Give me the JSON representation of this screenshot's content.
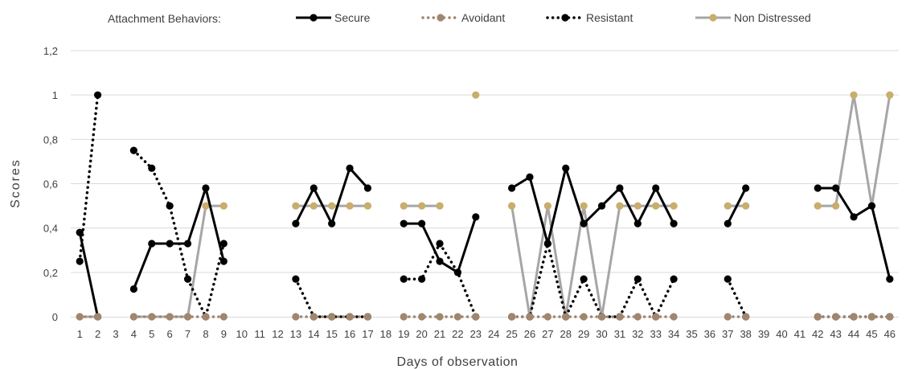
{
  "chart_data": {
    "type": "line",
    "title": "",
    "xlabel": "Days of observation",
    "ylabel": "Scores",
    "legend_title": "Attachment Behaviors:",
    "legend_position": "top",
    "ylim": [
      0,
      1.2
    ],
    "y_ticks": [
      "0",
      "0,2",
      "0,4",
      "0,6",
      "0,8",
      "1",
      "1,2"
    ],
    "grid": true,
    "categories": [
      "1",
      "2",
      "3",
      "4",
      "5",
      "6",
      "7",
      "8",
      "9",
      "10",
      "11",
      "12",
      "13",
      "14",
      "15",
      "16",
      "17",
      "18",
      "19",
      "20",
      "21",
      "22",
      "23",
      "24",
      "25",
      "26",
      "27",
      "28",
      "29",
      "30",
      "31",
      "32",
      "33",
      "34",
      "35",
      "36",
      "37",
      "38",
      "39",
      "40",
      "41",
      "42",
      "43",
      "44",
      "45",
      "46"
    ],
    "series": [
      {
        "name": "Secure",
        "color": "#000000",
        "style": "solid",
        "values": [
          0.38,
          0,
          null,
          0.125,
          0.33,
          0.33,
          0.33,
          0.58,
          0.25,
          null,
          null,
          null,
          0.42,
          0.58,
          0.42,
          0.67,
          0.58,
          null,
          0.42,
          0.42,
          0.25,
          0.2,
          0.45,
          null,
          0.58,
          0.63,
          0.33,
          0.67,
          0.42,
          0.5,
          0.58,
          0.42,
          0.58,
          0.42,
          null,
          null,
          0.42,
          0.58,
          null,
          null,
          null,
          0.58,
          0.58,
          0.45,
          0.5,
          0.17
        ]
      },
      {
        "name": "Avoidant",
        "color": "#a0866f",
        "style": "dotted",
        "values": [
          0,
          0,
          null,
          0,
          0,
          0,
          0,
          0,
          0,
          null,
          null,
          null,
          0,
          0,
          0,
          0,
          0,
          null,
          0,
          0,
          0,
          0,
          0,
          null,
          0,
          0,
          0,
          0,
          0,
          0,
          0,
          0,
          0,
          0,
          null,
          null,
          0,
          0,
          null,
          null,
          null,
          0,
          0,
          0,
          0,
          0
        ]
      },
      {
        "name": "Resistant",
        "color": "#000000",
        "style": "dotted",
        "values": [
          0.25,
          1,
          null,
          0.75,
          0.67,
          0.5,
          0.17,
          0,
          0.33,
          null,
          null,
          null,
          0.17,
          0,
          0,
          0,
          0,
          null,
          0.17,
          0.17,
          0.33,
          0.2,
          0,
          null,
          0,
          0,
          0.33,
          0,
          0.17,
          0,
          0,
          0.17,
          0,
          0.17,
          null,
          null,
          0.17,
          0,
          null,
          null,
          null,
          0,
          0,
          0,
          0,
          0
        ]
      },
      {
        "name": "Non Distressed",
        "color": "#a6a6a6",
        "marker_color": "#c9ad6a",
        "style": "solid",
        "values": [
          0,
          0,
          null,
          0,
          0,
          0,
          0,
          0.5,
          0.5,
          null,
          null,
          null,
          0.5,
          0.5,
          0.5,
          0.5,
          0.5,
          null,
          0.5,
          0.5,
          0.5,
          null,
          1,
          null,
          0.5,
          0,
          0.5,
          0,
          0.5,
          0,
          0.5,
          0.5,
          0.5,
          0.5,
          null,
          null,
          0.5,
          0.5,
          null,
          null,
          null,
          0.5,
          0.5,
          1,
          0.5,
          1
        ]
      }
    ],
    "draw_order": [
      "Non Distressed",
      "Resistant",
      "Secure",
      "Avoidant"
    ]
  }
}
